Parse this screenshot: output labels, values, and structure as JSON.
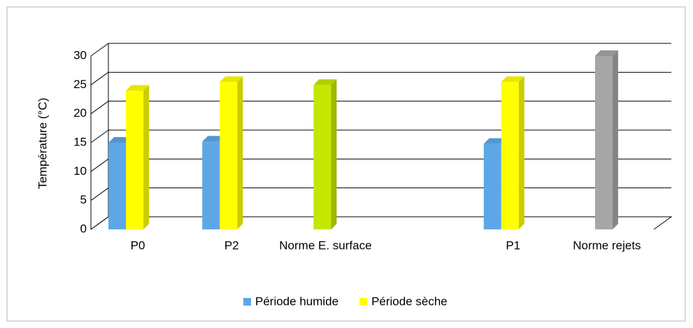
{
  "chart_data": {
    "type": "bar3d",
    "y_label": "Température (°C)",
    "categories": [
      "P0",
      "P2",
      "Norme E. surface",
      null,
      "P1",
      "Norme rejets"
    ],
    "series": [
      {
        "name": "Période humide",
        "color": "#5ea7e6",
        "values": [
          15,
          15.2,
          null,
          null,
          14.8,
          null
        ]
      },
      {
        "name": "Période sèche",
        "color": "#ffff00",
        "values": [
          24,
          25.5,
          25,
          null,
          25.5,
          30
        ],
        "colors": [
          "#ffff00",
          "#ffff00",
          "#c5e600",
          null,
          "#ffff00",
          "#a6a6a6"
        ]
      }
    ],
    "ylim": [
      0,
      30
    ],
    "yticks": [
      0,
      5,
      10,
      15,
      20,
      25,
      30
    ],
    "grid": true,
    "legend": "bottom"
  }
}
